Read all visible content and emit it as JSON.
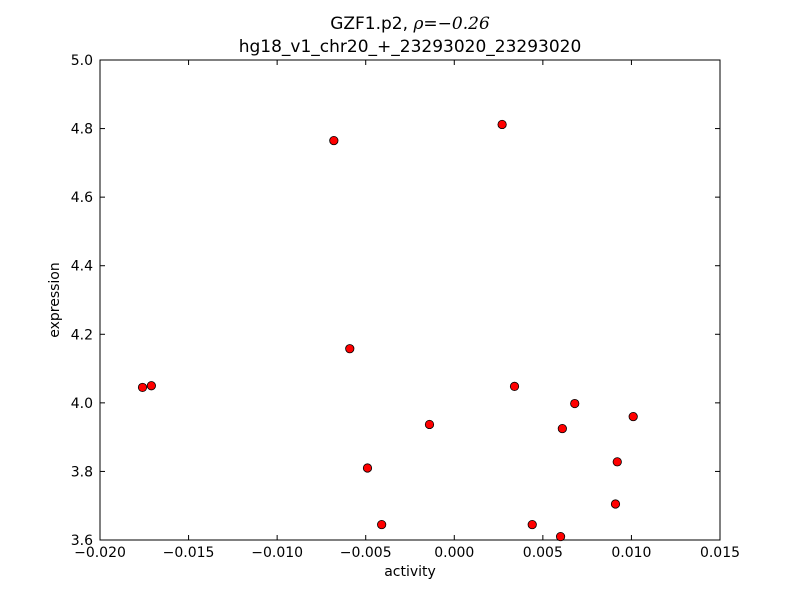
{
  "chart_data": {
    "type": "scatter",
    "title_name": "GZF1.p2, ",
    "title_stat": "ρ=−0.26",
    "subtitle": "hg18_v1_chr20_+_23293020_23293020",
    "xlabel": "activity",
    "ylabel": "expression",
    "xlim": [
      -0.02,
      0.015
    ],
    "ylim": [
      3.6,
      5.0
    ],
    "xticks": [
      -0.02,
      -0.015,
      -0.01,
      -0.005,
      0.0,
      0.005,
      0.01,
      0.015
    ],
    "xtick_labels": [
      "−0.020",
      "−0.015",
      "−0.010",
      "−0.005",
      "0.000",
      "0.005",
      "0.010",
      "0.015"
    ],
    "yticks": [
      3.6,
      3.8,
      4.0,
      4.2,
      4.4,
      4.6,
      4.8,
      5.0
    ],
    "ytick_labels": [
      "3.6",
      "3.8",
      "4.0",
      "4.2",
      "4.4",
      "4.6",
      "4.8",
      "5.0"
    ],
    "grid": false,
    "marker_color": "#ff0000",
    "marker_edge_color": "#000000",
    "points": [
      {
        "x": -0.0176,
        "y": 4.045
      },
      {
        "x": -0.0171,
        "y": 4.05
      },
      {
        "x": -0.0068,
        "y": 4.765
      },
      {
        "x": -0.0059,
        "y": 4.158
      },
      {
        "x": -0.0049,
        "y": 3.81
      },
      {
        "x": -0.0041,
        "y": 3.645
      },
      {
        "x": -0.0014,
        "y": 3.937
      },
      {
        "x": 0.0027,
        "y": 4.812
      },
      {
        "x": 0.0034,
        "y": 4.048
      },
      {
        "x": 0.0044,
        "y": 3.645
      },
      {
        "x": 0.006,
        "y": 3.61
      },
      {
        "x": 0.0061,
        "y": 3.925
      },
      {
        "x": 0.0068,
        "y": 3.998
      },
      {
        "x": 0.0091,
        "y": 3.705
      },
      {
        "x": 0.0092,
        "y": 3.828
      },
      {
        "x": 0.0101,
        "y": 3.96
      }
    ]
  }
}
